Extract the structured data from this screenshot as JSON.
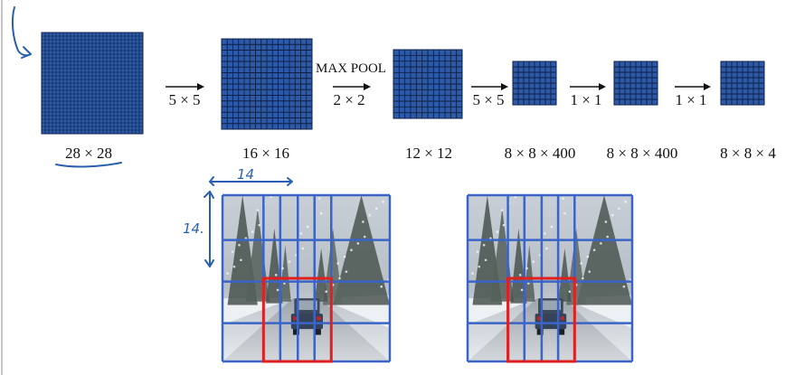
{
  "slide": {
    "pipeline": {
      "grids": [
        {
          "label": "28 × 28",
          "cells": 28
        },
        {
          "label": "16 × 16",
          "cells": 16
        },
        {
          "label": "12 × 12",
          "cells": 12
        },
        {
          "label": "8 × 8 × 400",
          "cells": 8
        },
        {
          "label": "8 × 8 × 400",
          "cells": 8
        },
        {
          "label": "8 × 8 × 4",
          "cells": 8
        }
      ],
      "arrows": [
        {
          "label": "5 × 5",
          "title": ""
        },
        {
          "label": "2 × 2",
          "title": "MAX POOL"
        },
        {
          "label": "5 × 5",
          "title": ""
        },
        {
          "label": "1 × 1",
          "title": ""
        },
        {
          "label": "1 × 1",
          "title": ""
        }
      ],
      "grid_color": "#2d5aa8",
      "grid_line_color": "#0d1f44"
    },
    "annotations": {
      "width_mark": "14",
      "height_mark": "14."
    },
    "photos": [
      {
        "name": "left-photo",
        "grid_cols": 4,
        "grid_rows": 4,
        "highlight": "red box around car"
      },
      {
        "name": "right-photo",
        "grid_cols": 4,
        "grid_rows": 4,
        "highlight": "red box around car"
      }
    ],
    "colors": {
      "photo_grid": "#3a64c8",
      "highlight": "#e02020"
    }
  }
}
